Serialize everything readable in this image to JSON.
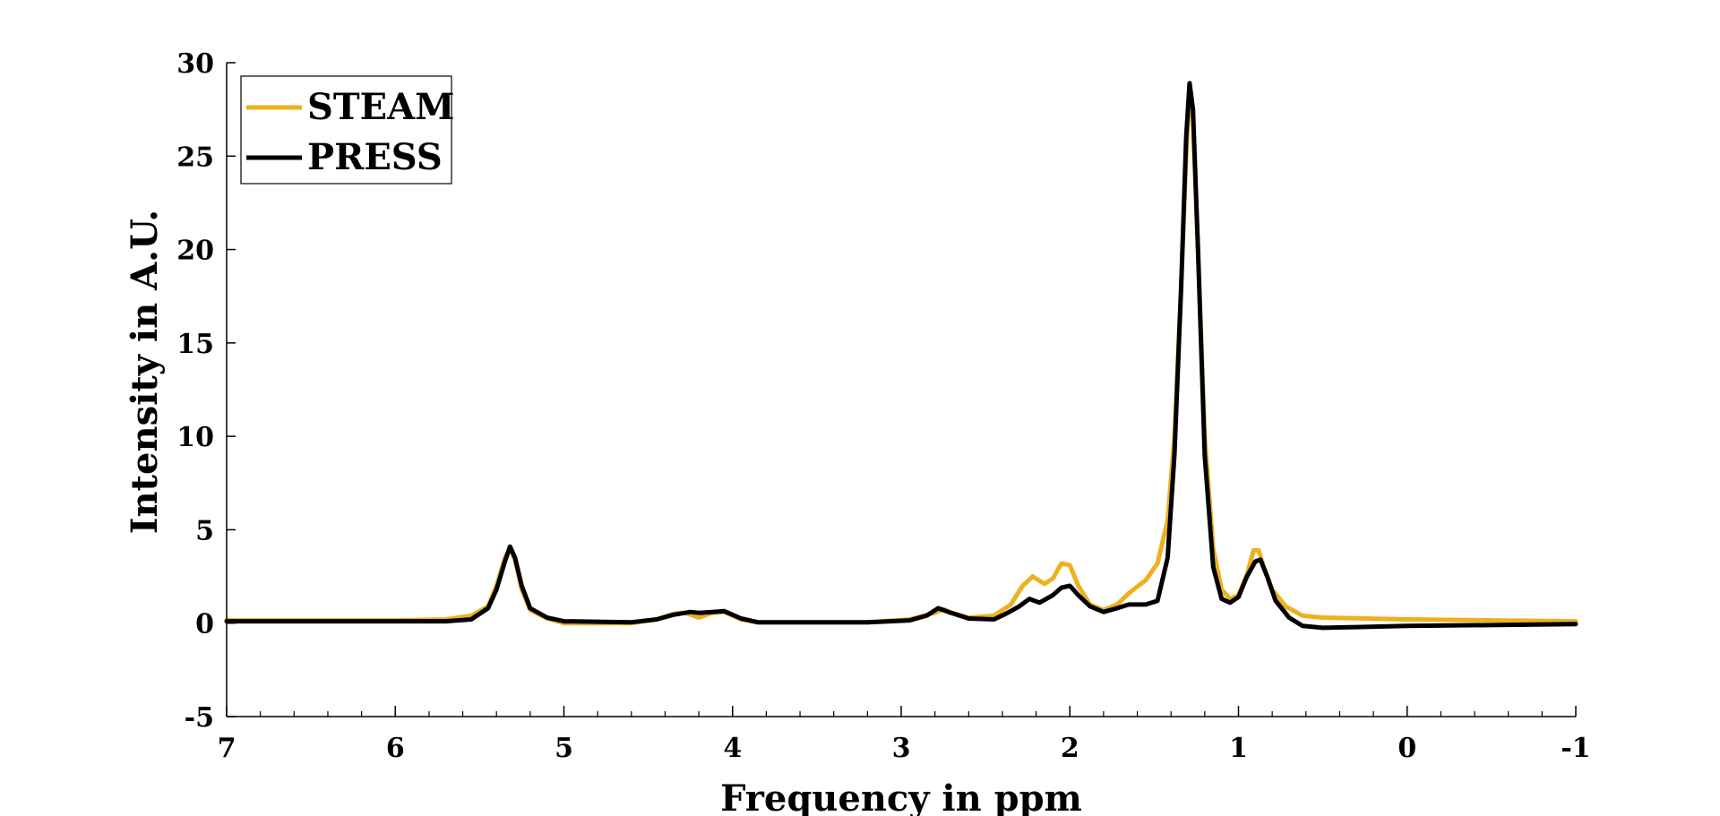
{
  "chart_data": {
    "type": "line",
    "title": "",
    "xlabel": "Frequency in ppm",
    "ylabel": "Intensity in A.U.",
    "xlim": [
      7,
      -1
    ],
    "ylim": [
      -5,
      30
    ],
    "x_reversed": true,
    "x_ticks": [
      "7",
      "6",
      "5",
      "4",
      "3",
      "2",
      "1",
      "0",
      "-1"
    ],
    "y_ticks": [
      "30",
      "25",
      "20",
      "15",
      "10",
      "5",
      "0",
      "-5"
    ],
    "grid": false,
    "legend": {
      "placement": "top-left",
      "entries": [
        "STEAM",
        "PRESS"
      ]
    },
    "series": [
      {
        "name": "STEAM",
        "color": "#EDB120",
        "points": [
          [
            7.0,
            0.15
          ],
          [
            6.0,
            0.15
          ],
          [
            5.7,
            0.2
          ],
          [
            5.55,
            0.4
          ],
          [
            5.45,
            0.9
          ],
          [
            5.4,
            2.0
          ],
          [
            5.35,
            3.5
          ],
          [
            5.32,
            4.0
          ],
          [
            5.29,
            3.4
          ],
          [
            5.25,
            1.8
          ],
          [
            5.2,
            0.7
          ],
          [
            5.1,
            0.25
          ],
          [
            5.0,
            0.0
          ],
          [
            4.6,
            0.0
          ],
          [
            4.45,
            0.2
          ],
          [
            4.35,
            0.5
          ],
          [
            4.28,
            0.55
          ],
          [
            4.2,
            0.3
          ],
          [
            4.12,
            0.55
          ],
          [
            4.05,
            0.6
          ],
          [
            3.95,
            0.2
          ],
          [
            3.85,
            0.05
          ],
          [
            3.2,
            0.05
          ],
          [
            2.95,
            0.2
          ],
          [
            2.8,
            0.55
          ],
          [
            2.75,
            0.75
          ],
          [
            2.7,
            0.55
          ],
          [
            2.6,
            0.3
          ],
          [
            2.45,
            0.4
          ],
          [
            2.35,
            1.0
          ],
          [
            2.28,
            2.0
          ],
          [
            2.22,
            2.5
          ],
          [
            2.15,
            2.1
          ],
          [
            2.1,
            2.4
          ],
          [
            2.05,
            3.2
          ],
          [
            2.0,
            3.1
          ],
          [
            1.95,
            2.0
          ],
          [
            1.88,
            1.0
          ],
          [
            1.8,
            0.7
          ],
          [
            1.72,
            1.0
          ],
          [
            1.65,
            1.6
          ],
          [
            1.55,
            2.3
          ],
          [
            1.48,
            3.2
          ],
          [
            1.42,
            5.5
          ],
          [
            1.38,
            10.0
          ],
          [
            1.34,
            18.0
          ],
          [
            1.31,
            25.0
          ],
          [
            1.29,
            28.5
          ],
          [
            1.27,
            27.0
          ],
          [
            1.24,
            20.0
          ],
          [
            1.2,
            10.0
          ],
          [
            1.15,
            4.0
          ],
          [
            1.1,
            1.8
          ],
          [
            1.05,
            1.3
          ],
          [
            1.0,
            1.5
          ],
          [
            0.95,
            2.6
          ],
          [
            0.91,
            3.9
          ],
          [
            0.88,
            3.9
          ],
          [
            0.85,
            3.0
          ],
          [
            0.8,
            1.8
          ],
          [
            0.72,
            0.9
          ],
          [
            0.62,
            0.4
          ],
          [
            0.5,
            0.3
          ],
          [
            0.0,
            0.2
          ],
          [
            -1.0,
            0.1
          ]
        ]
      },
      {
        "name": "PRESS",
        "color": "#000000",
        "points": [
          [
            7.0,
            0.1
          ],
          [
            6.0,
            0.1
          ],
          [
            5.7,
            0.1
          ],
          [
            5.55,
            0.2
          ],
          [
            5.45,
            0.8
          ],
          [
            5.4,
            1.8
          ],
          [
            5.35,
            3.3
          ],
          [
            5.32,
            4.1
          ],
          [
            5.29,
            3.5
          ],
          [
            5.25,
            2.0
          ],
          [
            5.2,
            0.8
          ],
          [
            5.1,
            0.3
          ],
          [
            5.0,
            0.1
          ],
          [
            4.6,
            0.05
          ],
          [
            4.45,
            0.2
          ],
          [
            4.35,
            0.45
          ],
          [
            4.25,
            0.6
          ],
          [
            4.2,
            0.55
          ],
          [
            4.12,
            0.6
          ],
          [
            4.05,
            0.65
          ],
          [
            3.95,
            0.25
          ],
          [
            3.85,
            0.05
          ],
          [
            3.2,
            0.05
          ],
          [
            2.95,
            0.15
          ],
          [
            2.85,
            0.4
          ],
          [
            2.78,
            0.8
          ],
          [
            2.72,
            0.6
          ],
          [
            2.6,
            0.25
          ],
          [
            2.45,
            0.2
          ],
          [
            2.38,
            0.5
          ],
          [
            2.3,
            0.9
          ],
          [
            2.24,
            1.3
          ],
          [
            2.18,
            1.1
          ],
          [
            2.1,
            1.5
          ],
          [
            2.05,
            1.9
          ],
          [
            2.0,
            2.0
          ],
          [
            1.95,
            1.5
          ],
          [
            1.88,
            0.9
          ],
          [
            1.8,
            0.6
          ],
          [
            1.72,
            0.8
          ],
          [
            1.65,
            1.0
          ],
          [
            1.55,
            1.0
          ],
          [
            1.48,
            1.2
          ],
          [
            1.42,
            3.5
          ],
          [
            1.38,
            9.0
          ],
          [
            1.34,
            18.0
          ],
          [
            1.31,
            26.0
          ],
          [
            1.29,
            28.9
          ],
          [
            1.27,
            27.5
          ],
          [
            1.24,
            20.0
          ],
          [
            1.2,
            9.0
          ],
          [
            1.15,
            3.0
          ],
          [
            1.1,
            1.3
          ],
          [
            1.05,
            1.1
          ],
          [
            1.0,
            1.4
          ],
          [
            0.95,
            2.5
          ],
          [
            0.9,
            3.3
          ],
          [
            0.87,
            3.4
          ],
          [
            0.83,
            2.5
          ],
          [
            0.78,
            1.2
          ],
          [
            0.7,
            0.3
          ],
          [
            0.62,
            -0.15
          ],
          [
            0.5,
            -0.25
          ],
          [
            0.0,
            -0.15
          ],
          [
            -1.0,
            -0.05
          ]
        ]
      }
    ]
  }
}
